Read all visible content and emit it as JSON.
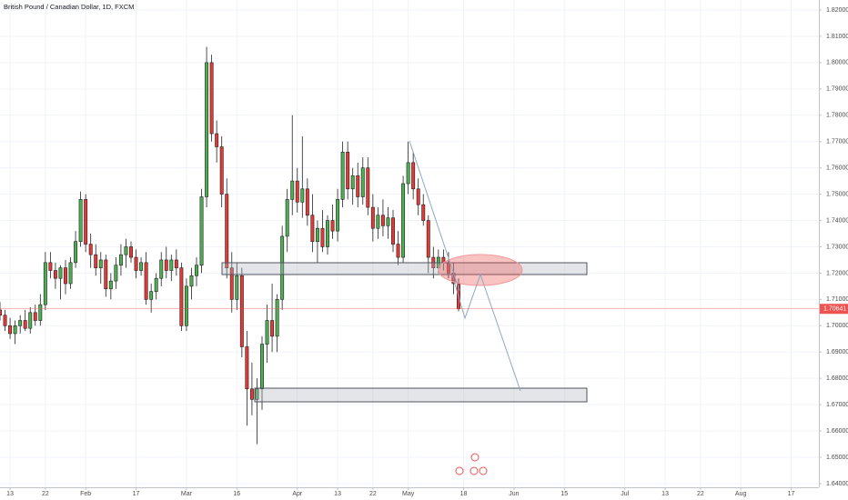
{
  "chart_data": {
    "type": "candlestick",
    "title": "British Pound / Canadian Dollar, 1D, FXCM",
    "x": [
      -2,
      -1,
      0,
      1,
      2,
      3,
      4,
      5,
      6,
      7,
      8,
      9,
      10,
      11,
      12,
      13,
      14,
      15,
      16,
      17,
      18,
      19,
      20,
      21,
      22,
      23,
      24,
      25,
      26,
      27,
      28,
      29,
      30,
      31,
      32,
      33,
      34,
      35,
      36,
      37,
      38,
      39,
      40,
      41,
      42,
      43,
      44,
      45,
      46,
      47,
      48,
      49,
      50,
      51,
      52,
      53,
      54,
      55,
      56,
      57,
      58,
      59,
      60,
      61,
      62,
      63,
      64,
      65,
      66,
      67,
      68,
      69,
      70,
      71,
      72,
      73,
      74,
      75,
      76,
      77,
      78,
      79,
      80,
      81,
      82,
      83,
      84,
      85,
      86,
      87,
      88,
      89
    ],
    "open": [
      1.706,
      1.704,
      1.7,
      1.697,
      1.7,
      1.702,
      1.699,
      1.705,
      1.702,
      1.708,
      1.724,
      1.721,
      1.718,
      1.722,
      1.716,
      1.724,
      1.732,
      1.748,
      1.731,
      1.727,
      1.722,
      1.725,
      1.714,
      1.717,
      1.723,
      1.727,
      1.73,
      1.726,
      1.721,
      1.724,
      1.71,
      1.713,
      1.718,
      1.725,
      1.721,
      1.725,
      1.722,
      1.7,
      1.715,
      1.719,
      1.723,
      1.749,
      1.8,
      1.773,
      1.768,
      1.75,
      1.722,
      1.71,
      1.719,
      1.692,
      1.676,
      1.672,
      1.676,
      1.693,
      1.702,
      1.696,
      1.71,
      1.734,
      1.748,
      1.755,
      1.747,
      1.752,
      1.742,
      1.732,
      1.737,
      1.73,
      1.74,
      1.736,
      1.748,
      1.766,
      1.752,
      1.757,
      1.749,
      1.76,
      1.745,
      1.737,
      1.742,
      1.738,
      1.741,
      1.731,
      1.726,
      1.754,
      1.762,
      1.752,
      1.746,
      1.74,
      1.726,
      1.722,
      1.726,
      1.724,
      1.72,
      1.716
    ],
    "high": [
      1.709,
      1.706,
      1.703,
      1.702,
      1.704,
      1.706,
      1.707,
      1.708,
      1.712,
      1.728,
      1.728,
      1.724,
      1.723,
      1.725,
      1.726,
      1.736,
      1.751,
      1.75,
      1.735,
      1.731,
      1.728,
      1.727,
      1.72,
      1.726,
      1.731,
      1.733,
      1.732,
      1.729,
      1.726,
      1.728,
      1.716,
      1.72,
      1.728,
      1.73,
      1.727,
      1.729,
      1.724,
      1.718,
      1.722,
      1.726,
      1.752,
      1.806,
      1.803,
      1.778,
      1.772,
      1.756,
      1.728,
      1.724,
      1.722,
      1.698,
      1.686,
      1.68,
      1.696,
      1.708,
      1.716,
      1.712,
      1.738,
      1.752,
      1.78,
      1.76,
      1.772,
      1.756,
      1.75,
      1.74,
      1.744,
      1.742,
      1.746,
      1.752,
      1.77,
      1.77,
      1.76,
      1.762,
      1.764,
      1.764,
      1.75,
      1.745,
      1.748,
      1.745,
      1.744,
      1.736,
      1.757,
      1.77,
      1.766,
      1.756,
      1.75,
      1.742,
      1.73,
      1.729,
      1.729,
      1.728,
      1.724,
      1.718
    ],
    "low": [
      1.702,
      1.698,
      1.695,
      1.693,
      1.697,
      1.698,
      1.697,
      1.7,
      1.7,
      1.706,
      1.718,
      1.714,
      1.71,
      1.712,
      1.714,
      1.722,
      1.73,
      1.728,
      1.722,
      1.719,
      1.716,
      1.711,
      1.71,
      1.714,
      1.719,
      1.722,
      1.724,
      1.718,
      1.719,
      1.708,
      1.705,
      1.71,
      1.715,
      1.718,
      1.717,
      1.719,
      1.698,
      1.698,
      1.71,
      1.715,
      1.72,
      1.745,
      1.77,
      1.762,
      1.745,
      1.718,
      1.705,
      1.706,
      1.688,
      1.662,
      1.666,
      1.655,
      1.668,
      1.686,
      1.69,
      1.69,
      1.706,
      1.728,
      1.742,
      1.743,
      1.741,
      1.738,
      1.728,
      1.724,
      1.728,
      1.727,
      1.733,
      1.732,
      1.745,
      1.748,
      1.746,
      1.745,
      1.746,
      1.742,
      1.732,
      1.733,
      1.734,
      1.733,
      1.728,
      1.723,
      1.724,
      1.75,
      1.748,
      1.742,
      1.738,
      1.72,
      1.718,
      1.72,
      1.721,
      1.718,
      1.712,
      1.7055
    ],
    "close": [
      1.704,
      1.7,
      1.697,
      1.7,
      1.702,
      1.699,
      1.705,
      1.702,
      1.708,
      1.724,
      1.721,
      1.718,
      1.722,
      1.716,
      1.724,
      1.732,
      1.748,
      1.731,
      1.727,
      1.722,
      1.725,
      1.714,
      1.717,
      1.723,
      1.727,
      1.73,
      1.726,
      1.721,
      1.724,
      1.71,
      1.713,
      1.718,
      1.725,
      1.721,
      1.725,
      1.722,
      1.7,
      1.715,
      1.719,
      1.723,
      1.749,
      1.8,
      1.773,
      1.768,
      1.75,
      1.722,
      1.71,
      1.719,
      1.692,
      1.676,
      1.672,
      1.676,
      1.693,
      1.702,
      1.696,
      1.71,
      1.734,
      1.748,
      1.755,
      1.747,
      1.752,
      1.742,
      1.732,
      1.737,
      1.73,
      1.74,
      1.736,
      1.748,
      1.766,
      1.752,
      1.757,
      1.749,
      1.76,
      1.745,
      1.737,
      1.742,
      1.738,
      1.741,
      1.731,
      1.726,
      1.754,
      1.762,
      1.752,
      1.746,
      1.74,
      1.726,
      1.722,
      1.726,
      1.724,
      1.72,
      1.716,
      1.70641
    ],
    "up_color": "#4caf50",
    "down_color": "#e53935",
    "last_price": 1.70641,
    "last_price_color": "#ef5350",
    "xlim": [
      -2,
      160.5
    ],
    "xticks": [
      {
        "value": 0,
        "label": "13"
      },
      {
        "value": 7,
        "label": "22"
      },
      {
        "value": 15,
        "label": "Feb"
      },
      {
        "value": 25,
        "label": "17"
      },
      {
        "value": 35,
        "label": "Mar"
      },
      {
        "value": 45,
        "label": "16"
      },
      {
        "value": 57,
        "label": "Apr"
      },
      {
        "value": 65,
        "label": "13"
      },
      {
        "value": 72,
        "label": "22"
      },
      {
        "value": 79,
        "label": "May"
      },
      {
        "value": 90,
        "label": "18"
      },
      {
        "value": 100,
        "label": "Jun"
      },
      {
        "value": 110,
        "label": "15"
      },
      {
        "value": 122,
        "label": "Jul"
      },
      {
        "value": 130,
        "label": "13"
      },
      {
        "value": 137,
        "label": "22"
      },
      {
        "value": 145,
        "label": "Aug"
      },
      {
        "value": 155,
        "label": "17"
      }
    ],
    "ylim": [
      1.6386,
      1.8238
    ],
    "yticks": [
      {
        "value": 1.64,
        "label": "1.64000"
      },
      {
        "value": 1.65,
        "label": "1.65000"
      },
      {
        "value": 1.66,
        "label": "1.66000"
      },
      {
        "value": 1.67,
        "label": "1.67000"
      },
      {
        "value": 1.68,
        "label": "1.68000"
      },
      {
        "value": 1.69,
        "label": "1.69000"
      },
      {
        "value": 1.7,
        "label": "1.70000"
      },
      {
        "value": 1.71,
        "label": "1.71000"
      },
      {
        "value": 1.72,
        "label": "1.72000"
      },
      {
        "value": 1.73,
        "label": "1.73000"
      },
      {
        "value": 1.74,
        "label": "1.74000"
      },
      {
        "value": 1.75,
        "label": "1.75000"
      },
      {
        "value": 1.76,
        "label": "1.76000"
      },
      {
        "value": 1.77,
        "label": "1.77000"
      },
      {
        "value": 1.78,
        "label": "1.78000"
      },
      {
        "value": 1.79,
        "label": "1.79000"
      },
      {
        "value": 1.8,
        "label": "1.80000"
      },
      {
        "value": 1.81,
        "label": "1.81000"
      },
      {
        "value": 1.82,
        "label": "1.82000"
      }
    ],
    "grid": true
  }
}
